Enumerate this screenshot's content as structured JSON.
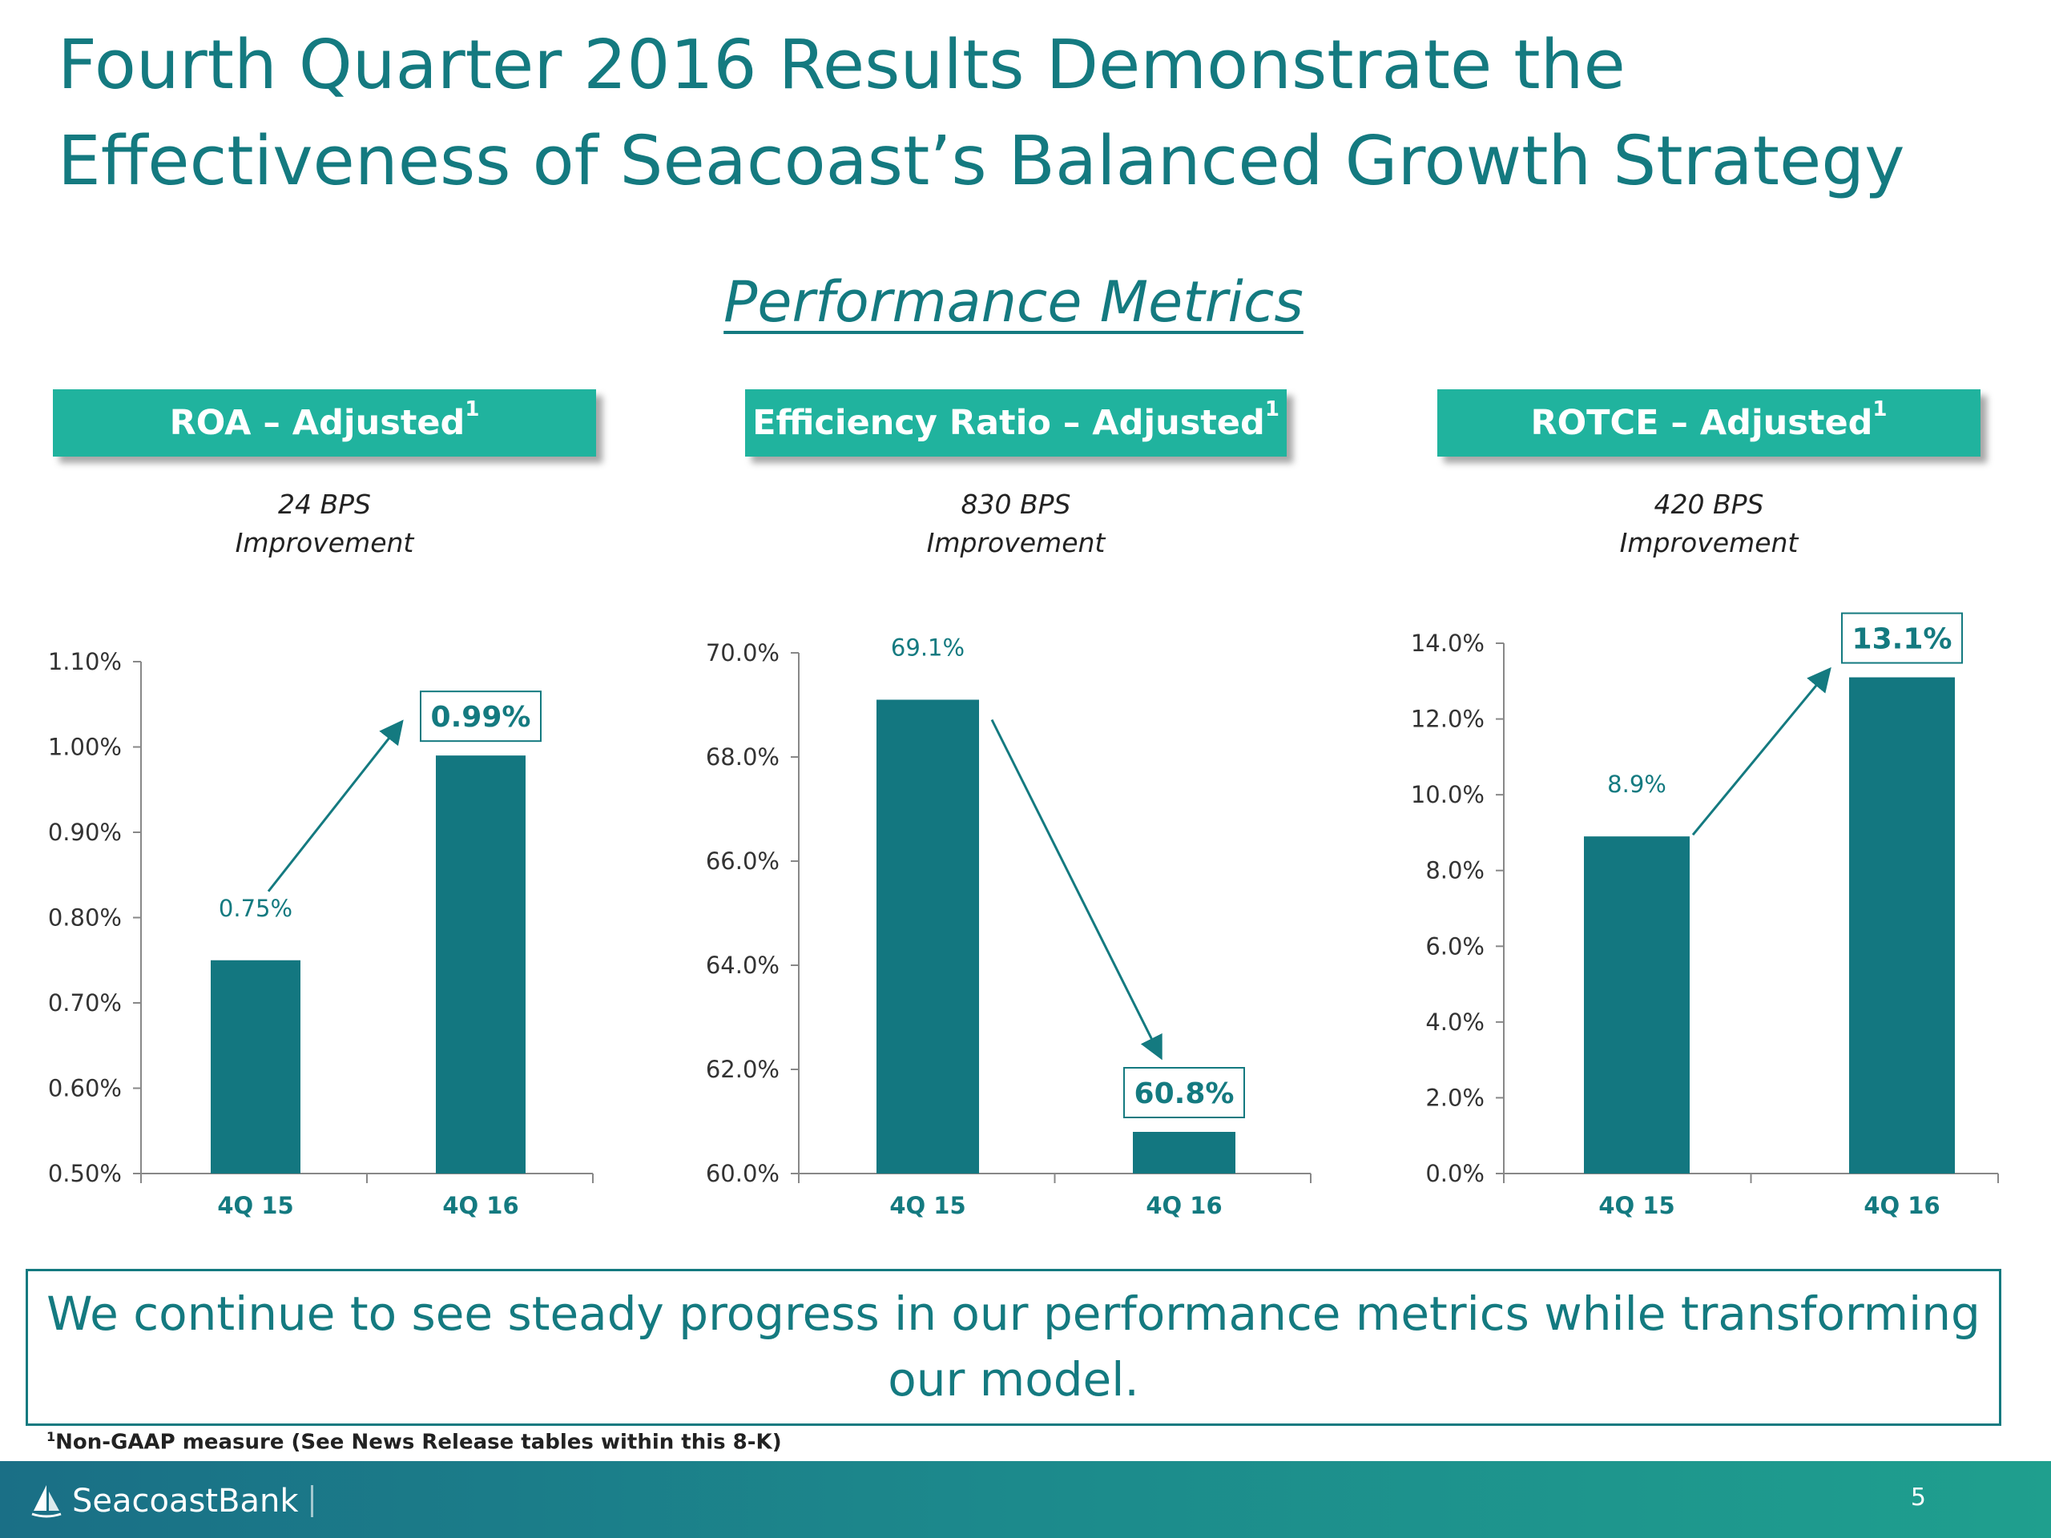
{
  "slide": {
    "title": "Fourth Quarter 2016 Results Demonstrate the Effectiveness of Seacoast’s Balanced Growth Strategy",
    "subtitle": "Performance Metrics",
    "callout": "We continue to see steady progress in our performance metrics while transforming our model.",
    "footnote": "Non-GAAP measure (See News Release tables within this 8-K)",
    "footnote_sup": "1",
    "page_number": "5",
    "logo_text": "SeacoastBank"
  },
  "panels": [
    {
      "label": "ROA – Adjusted",
      "sup": "1",
      "improvement_line1": "24 BPS",
      "improvement_line2": "Improvement"
    },
    {
      "label": "Efficiency Ratio – Adjusted",
      "sup": "1",
      "improvement_line1": "830 BPS",
      "improvement_line2": "Improvement"
    },
    {
      "label": "ROTCE – Adjusted",
      "sup": "1",
      "improvement_line1": "420 BPS",
      "improvement_line2": "Improvement"
    }
  ],
  "colors": {
    "bar": "#137780",
    "accent": "#20b39e",
    "text": "#147a80"
  },
  "chart_data": [
    {
      "type": "bar",
      "categories": [
        "4Q 15",
        "4Q 16"
      ],
      "values": [
        0.75,
        0.99
      ],
      "value_labels": [
        "0.75%",
        "0.99%"
      ],
      "ylim": [
        0.5,
        1.1
      ],
      "yticks": [
        0.5,
        0.6,
        0.7,
        0.8,
        0.9,
        1.0,
        1.1
      ],
      "ytick_labels": [
        "0.50%",
        "0.60%",
        "0.70%",
        "0.80%",
        "0.90%",
        "1.00%",
        "1.10%"
      ],
      "highlight": 1,
      "trend": "up"
    },
    {
      "type": "bar",
      "categories": [
        "4Q 15",
        "4Q 16"
      ],
      "values": [
        69.1,
        60.8
      ],
      "value_labels": [
        "69.1%",
        "60.8%"
      ],
      "ylim": [
        60,
        70
      ],
      "yticks": [
        60,
        62,
        64,
        66,
        68,
        70
      ],
      "ytick_labels": [
        "60.0%",
        "62.0%",
        "64.0%",
        "66.0%",
        "68.0%",
        "70.0%"
      ],
      "highlight": 1,
      "trend": "down"
    },
    {
      "type": "bar",
      "categories": [
        "4Q 15",
        "4Q 16"
      ],
      "values": [
        8.9,
        13.1
      ],
      "value_labels": [
        "8.9%",
        "13.1%"
      ],
      "ylim": [
        0,
        14
      ],
      "yticks": [
        0,
        2,
        4,
        6,
        8,
        10,
        12,
        14
      ],
      "ytick_labels": [
        "0.0%",
        "2.0%",
        "4.0%",
        "6.0%",
        "8.0%",
        "10.0%",
        "12.0%",
        "14.0%"
      ],
      "highlight": 1,
      "trend": "up"
    }
  ]
}
